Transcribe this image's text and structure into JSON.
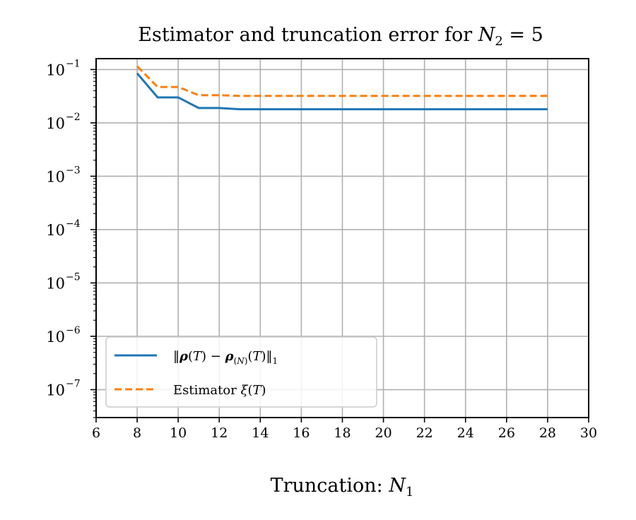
{
  "chart_data": {
    "type": "line",
    "title": {
      "prefix": "Estimator and truncation error for ",
      "var": "N",
      "sub": "2",
      "suffix": " = 5"
    },
    "xlabel": {
      "prefix": "Truncation: ",
      "var": "N",
      "sub": "1"
    },
    "ylabel": "",
    "xlim": [
      6,
      30
    ],
    "ylim": [
      3e-08,
      0.16
    ],
    "yscale": "log",
    "grid": true,
    "legend_position": "lower-left",
    "x_ticks": [
      6,
      8,
      10,
      12,
      14,
      16,
      18,
      20,
      22,
      24,
      26,
      28,
      30
    ],
    "y_ticks": [
      {
        "value": 0.1,
        "exp": "−1"
      },
      {
        "value": 0.01,
        "exp": "−2"
      },
      {
        "value": 0.001,
        "exp": "−3"
      },
      {
        "value": 0.0001,
        "exp": "−4"
      },
      {
        "value": 1e-05,
        "exp": "−5"
      },
      {
        "value": 1e-06,
        "exp": "−6"
      },
      {
        "value": 1e-07,
        "exp": "−7"
      }
    ],
    "x": [
      8,
      9,
      10,
      11,
      12,
      13,
      14,
      15,
      16,
      17,
      18,
      19,
      20,
      21,
      22,
      23,
      24,
      25,
      26,
      27,
      28
    ],
    "series": [
      {
        "name": "‖ρ(T) − ρ(N)(T)‖1",
        "color": "#1f77b4",
        "dash": "solid",
        "values": [
          0.085,
          0.03,
          0.03,
          0.019,
          0.019,
          0.018,
          0.018,
          0.018,
          0.018,
          0.018,
          0.018,
          0.018,
          0.018,
          0.018,
          0.018,
          0.018,
          0.018,
          0.018,
          0.018,
          0.018,
          0.018
        ]
      },
      {
        "name": "Estimator ξ(T)",
        "color": "#ff7f0e",
        "dash": "dashed",
        "values": [
          0.115,
          0.047,
          0.047,
          0.033,
          0.033,
          0.032,
          0.032,
          0.032,
          0.032,
          0.032,
          0.032,
          0.032,
          0.032,
          0.032,
          0.032,
          0.032,
          0.032,
          0.032,
          0.032,
          0.032,
          0.032
        ]
      }
    ]
  }
}
